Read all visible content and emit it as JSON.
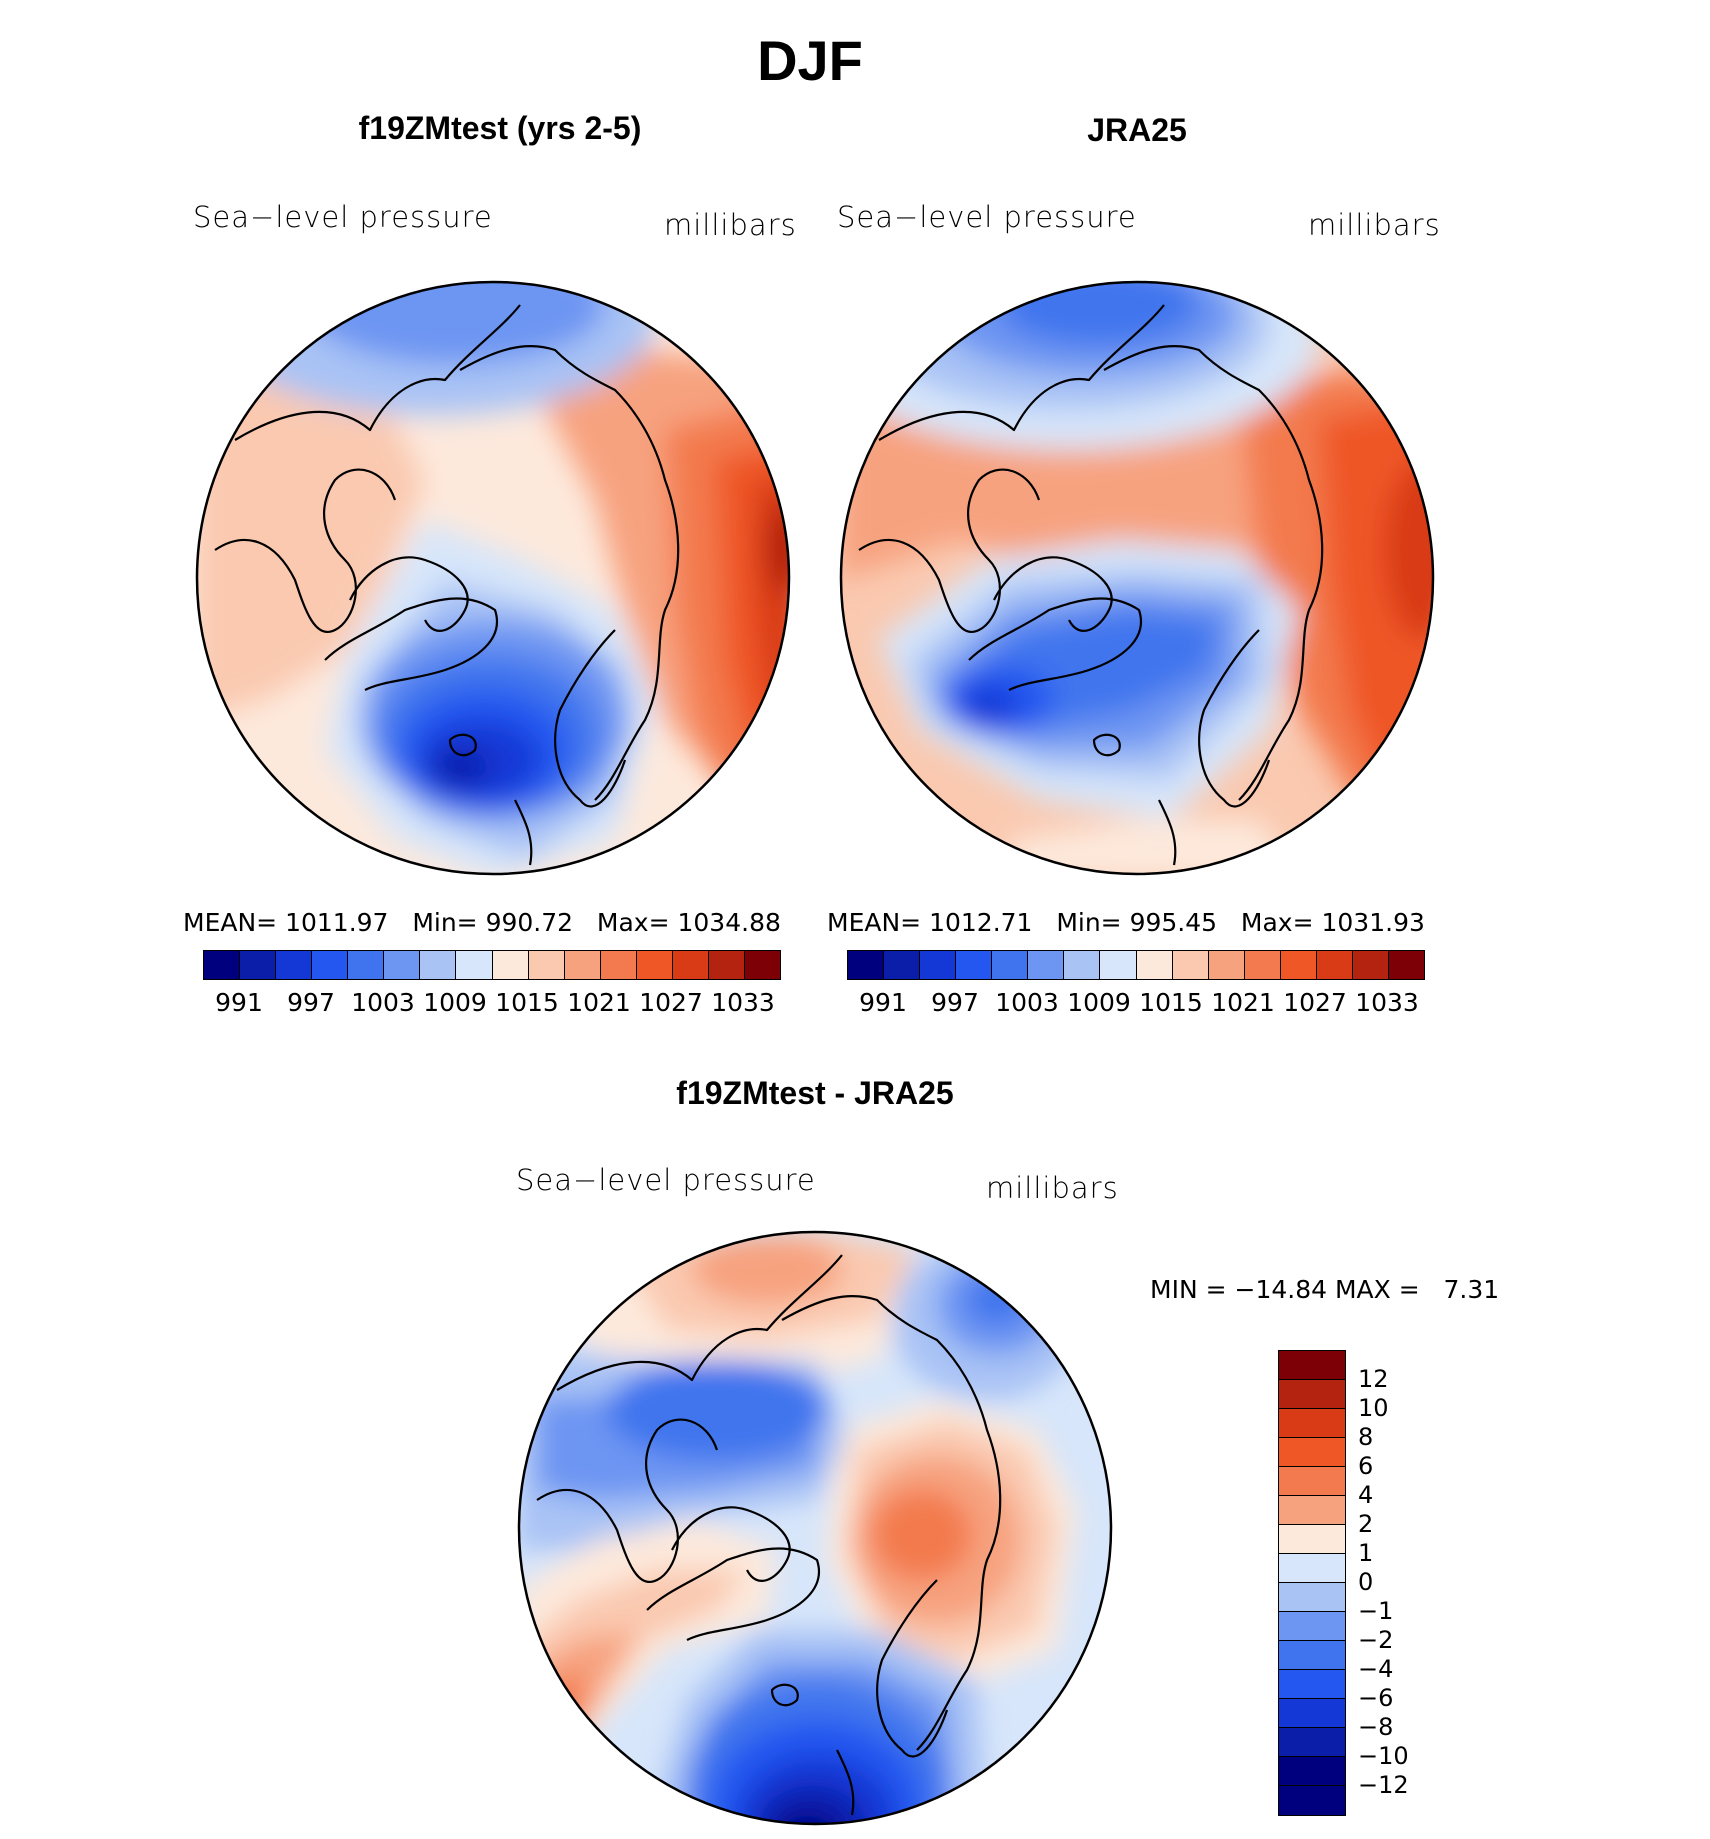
{
  "figure_title": "DJF",
  "palette": {
    "sixteen": [
      "#00007e",
      "#0a1eaa",
      "#1438d6",
      "#2456f0",
      "#3f74ee",
      "#6d95f2",
      "#a9c3f5",
      "#d7e6fa",
      "#fde9dc",
      "#fac9b0",
      "#f7a27f",
      "#f37a4e",
      "#ef5727",
      "#d83b16",
      "#b42310",
      "#7e0007"
    ],
    "diff": [
      "#7e0007",
      "#b42310",
      "#d83b16",
      "#ef5727",
      "#f37a4e",
      "#f7a27f",
      "#fde9dc",
      "#d7e6fa",
      "#a9c3f5",
      "#6d95f2",
      "#3f74ee",
      "#2456f0",
      "#1438d6",
      "#0a1eaa",
      "#00007e"
    ]
  },
  "panels": {
    "model": {
      "title": "f19ZMtest (yrs 2-5)",
      "variable": "Sea−level pressure",
      "units": "millibars",
      "mean_label": "MEAN=",
      "mean": "1011.97",
      "min_label": "Min=",
      "min": "990.72",
      "max_label": "Max=",
      "max": "1034.88",
      "colorbar_ticks": [
        "991",
        "997",
        "1003",
        "1009",
        "1015",
        "1021",
        "1027",
        "1033"
      ]
    },
    "obs": {
      "title": "JRA25",
      "variable": "Sea−level pressure",
      "units": "millibars",
      "mean_label": "MEAN=",
      "mean": "1012.71",
      "min_label": "Min=",
      "min": "995.45",
      "max_label": "Max=",
      "max": "1031.93",
      "colorbar_ticks": [
        "991",
        "997",
        "1003",
        "1009",
        "1015",
        "1021",
        "1027",
        "1033"
      ]
    },
    "diff": {
      "title": "f19ZMtest - JRA25",
      "variable": "Sea−level pressure",
      "units": "millibars",
      "min_label": "MIN =",
      "min": "−14.84",
      "max_label": "MAX =",
      "max": "7.31",
      "colorbar_ticks": [
        "12",
        "10",
        "8",
        "6",
        "4",
        "2",
        "1",
        "0",
        "−1",
        "−2",
        "−4",
        "−6",
        "−8",
        "−10",
        "−12"
      ]
    }
  }
}
